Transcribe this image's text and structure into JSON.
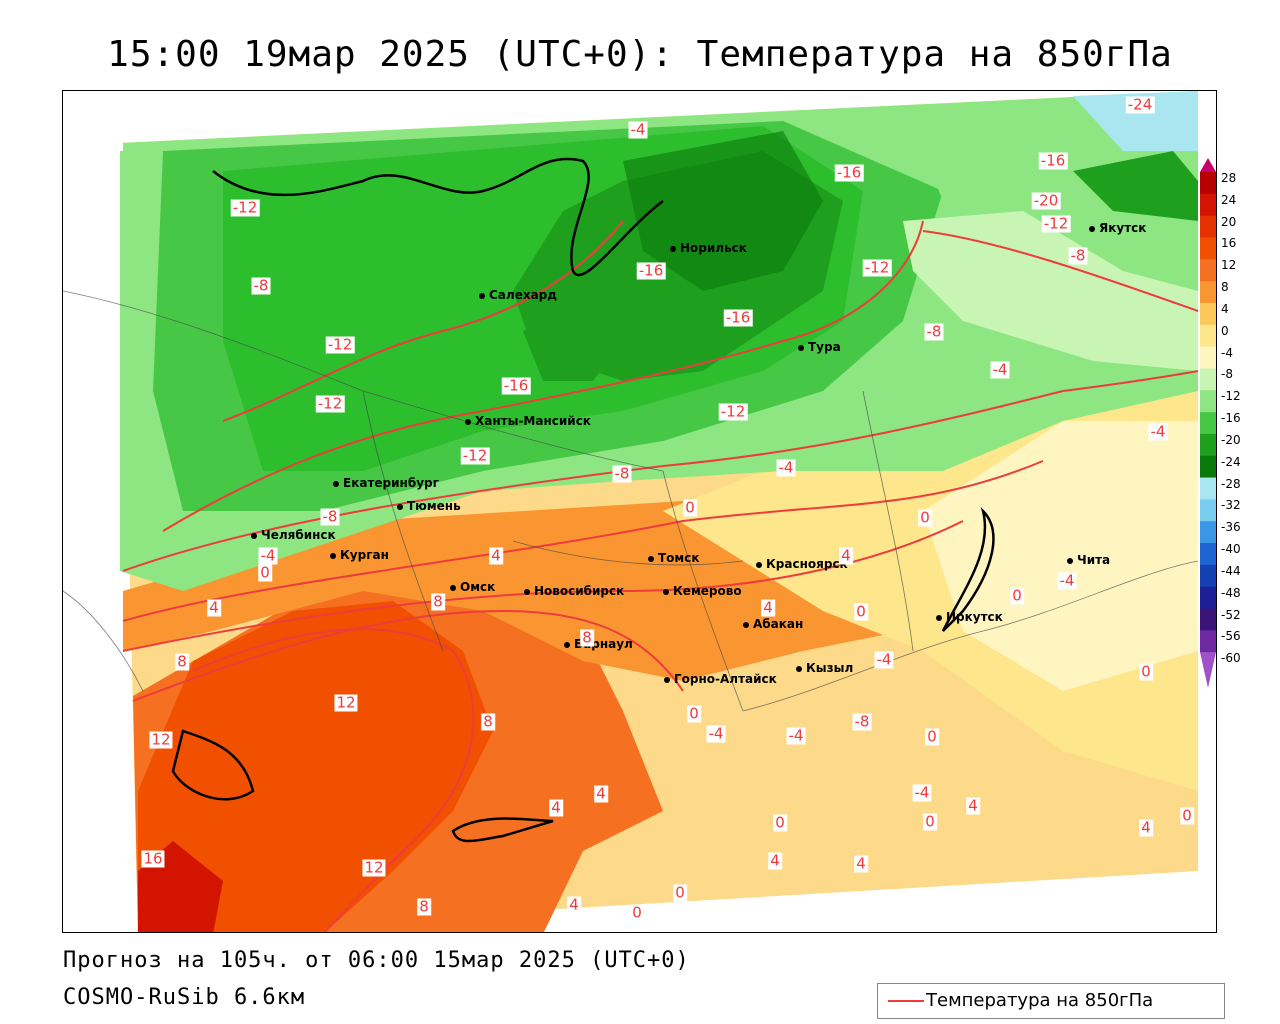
{
  "title": "15:00 19мар 2025 (UTC+0): Температура на 850гПа",
  "footer": {
    "forecast": "Прогноз на 105ч. от 06:00 15мар 2025 (UTC+0)",
    "model": "COSMO-RuSib 6.6км"
  },
  "legend": {
    "label": "Температура на 850гПа",
    "color": "#ee3c3c"
  },
  "colorbar": {
    "ticks": [
      "28",
      "24",
      "20",
      "16",
      "12",
      "8",
      "4",
      "0",
      "-4",
      "-8",
      "-12",
      "-16",
      "-20",
      "-24",
      "-28",
      "-32",
      "-36",
      "-40",
      "-44",
      "-48",
      "-52",
      "-56",
      "-60"
    ],
    "colors": [
      "#c8006a",
      "#b40000",
      "#d21400",
      "#e63200",
      "#f05000",
      "#f57020",
      "#fa9632",
      "#fcc85a",
      "#fde68c",
      "#fef5c0",
      "#c8f5b4",
      "#8ee682",
      "#46c846",
      "#1ea01e",
      "#0a7a0a",
      "#aae6f0",
      "#78cdf0",
      "#3c96e6",
      "#1e64d2",
      "#1440b4",
      "#1e1e96",
      "#3c1478",
      "#6e28a0",
      "#a050c8"
    ]
  },
  "cities": [
    {
      "name": "Салехард"
    },
    {
      "name": "Норильск"
    },
    {
      "name": "Якутск"
    },
    {
      "name": "Тура"
    },
    {
      "name": "Ханты-Мансийск"
    },
    {
      "name": "Екатеринбург"
    },
    {
      "name": "Тюмень"
    },
    {
      "name": "Челябинск"
    },
    {
      "name": "Курган"
    },
    {
      "name": "Омск"
    },
    {
      "name": "Новосибирск"
    },
    {
      "name": "Томск"
    },
    {
      "name": "Кемерово"
    },
    {
      "name": "Красноярск"
    },
    {
      "name": "Барнаул"
    },
    {
      "name": "Абакан"
    },
    {
      "name": "Горно-Алтайск"
    },
    {
      "name": "Кызыл"
    },
    {
      "name": "Иркутск"
    },
    {
      "name": "Чита"
    }
  ],
  "isotherm_labels": [
    "-24",
    "-16",
    "-20",
    "-12",
    "-8",
    "-4",
    "-12",
    "-16",
    "-16",
    "-12",
    "-8",
    "-12",
    "-16",
    "-16",
    "-12",
    "-8",
    "-12",
    "-12",
    "-8",
    "-4",
    "-4",
    "-4",
    "0",
    "-8",
    "-4",
    "0",
    "0",
    "4",
    "4",
    "4",
    "8",
    "8",
    "8",
    "8",
    "12",
    "12",
    "12",
    "16",
    "8",
    "4",
    "0",
    "-4",
    "-8",
    "-4",
    "0",
    "4",
    "4",
    "4",
    "0",
    "0",
    "4",
    "4",
    "0",
    "4",
    "0",
    "0",
    "-4",
    "-4",
    "0",
    "0",
    "-4",
    "0",
    "4"
  ]
}
